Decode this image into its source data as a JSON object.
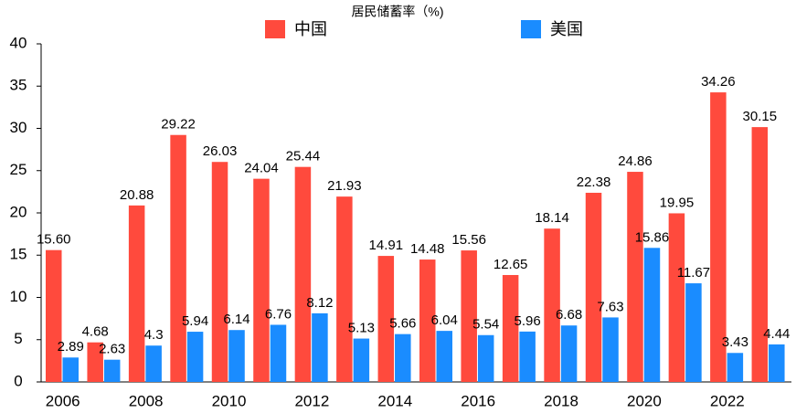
{
  "chart_data": {
    "type": "bar",
    "title": "居民储蓄率（%)",
    "categories": [
      "2006",
      null,
      "2008",
      null,
      "2010",
      null,
      "2012",
      null,
      "2014",
      null,
      "2016",
      null,
      "2018",
      null,
      "2020",
      null,
      "2022",
      null
    ],
    "series": [
      {
        "name": "中国",
        "color": "#ff4a3d",
        "values": [
          15.6,
          4.68,
          20.88,
          29.22,
          26.03,
          24.04,
          25.44,
          21.93,
          14.91,
          14.48,
          15.56,
          12.65,
          18.14,
          22.38,
          24.86,
          19.95,
          34.26,
          30.15
        ],
        "value_labels": [
          "15.60",
          "4.68",
          "20.88",
          "29.22",
          "26.03",
          "24.04",
          "25.44",
          "21.93",
          "14.91",
          "14.48",
          "15.56",
          "12.65",
          "18.14",
          "22.38",
          "24.86",
          "19.95",
          "34.26",
          "30.15"
        ]
      },
      {
        "name": "美国",
        "color": "#1a8cff",
        "values": [
          2.89,
          2.63,
          4.3,
          5.94,
          6.14,
          6.76,
          8.12,
          5.13,
          5.66,
          6.04,
          5.54,
          5.96,
          6.68,
          7.63,
          15.86,
          11.67,
          3.43,
          4.44
        ]
      }
    ],
    "ylim": [
      0,
      40
    ],
    "yticks": [
      0,
      5,
      10,
      15,
      20,
      25,
      30,
      35,
      40
    ],
    "grid": false,
    "legend": "top"
  }
}
